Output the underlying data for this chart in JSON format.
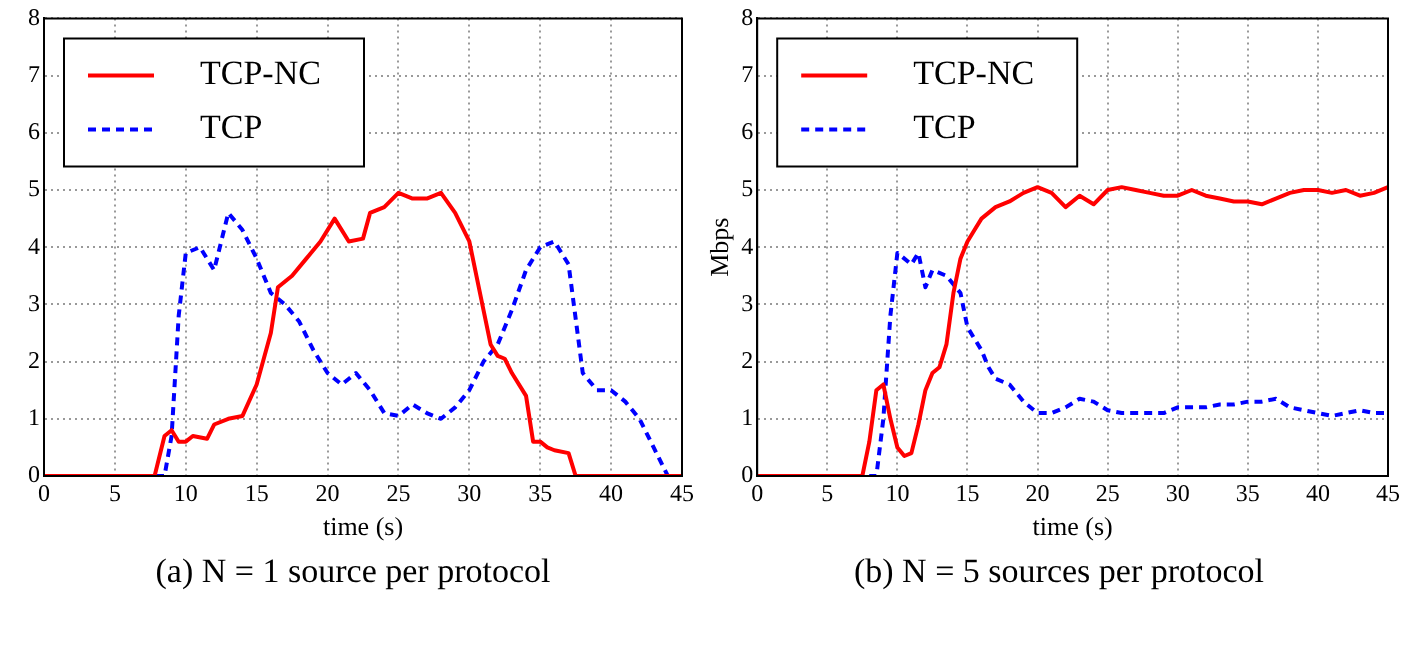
{
  "chart_data": [
    {
      "type": "line",
      "xlabel": "time (s)",
      "xlim": [
        0,
        45
      ],
      "xticks": [
        0,
        5,
        10,
        15,
        20,
        25,
        30,
        35,
        40,
        45
      ],
      "ylim": [
        0,
        8
      ],
      "yticks": [
        0,
        1,
        2,
        3,
        4,
        5,
        6,
        7,
        8
      ],
      "grid": true,
      "legend": "top left",
      "marker": "none",
      "annotations": [
        "(a) N = 1 source per protocol"
      ],
      "series": [
        {
          "name": "TCP-NC",
          "color": "#ff0000",
          "line_style": "solid",
          "x": [
            0,
            7.8,
            8.5,
            9,
            9.5,
            10,
            10.5,
            11.5,
            12,
            13,
            14,
            15,
            16,
            16.5,
            17.5,
            18.5,
            19.5,
            20.5,
            21.5,
            22.5,
            23,
            24,
            25,
            26,
            27,
            28,
            29,
            30,
            31,
            31.5,
            32,
            32.5,
            33,
            34,
            34.5,
            35,
            35.5,
            36,
            37,
            37.5,
            45
          ],
          "values": [
            0,
            0,
            0.7,
            0.8,
            0.6,
            0.6,
            0.7,
            0.65,
            0.9,
            1.0,
            1.05,
            1.6,
            2.5,
            3.3,
            3.5,
            3.8,
            4.1,
            4.5,
            4.1,
            4.15,
            4.6,
            4.7,
            4.95,
            4.85,
            4.85,
            4.95,
            4.6,
            4.1,
            2.9,
            2.3,
            2.1,
            2.05,
            1.8,
            1.4,
            0.6,
            0.6,
            0.5,
            0.45,
            0.4,
            0,
            0
          ]
        },
        {
          "name": "TCP",
          "color": "#0000ff",
          "line_style": "dashed",
          "x": [
            0,
            8.5,
            9,
            9.5,
            10,
            11,
            12,
            13,
            14,
            15,
            16,
            17,
            18,
            19,
            20,
            21,
            22,
            23,
            24,
            25,
            26,
            27,
            28,
            29,
            30,
            31,
            32,
            33,
            34,
            35,
            36,
            37,
            38,
            39,
            40,
            41,
            42,
            43,
            44,
            45
          ],
          "values": [
            0,
            0,
            0.7,
            2.8,
            3.9,
            4.0,
            3.6,
            4.6,
            4.3,
            3.8,
            3.2,
            3.0,
            2.7,
            2.2,
            1.8,
            1.6,
            1.8,
            1.5,
            1.1,
            1.05,
            1.25,
            1.1,
            1.0,
            1.2,
            1.5,
            2.0,
            2.3,
            2.9,
            3.6,
            4.0,
            4.1,
            3.7,
            1.8,
            1.5,
            1.5,
            1.3,
            1.0,
            0.5,
            0,
            0
          ]
        }
      ]
    },
    {
      "type": "line",
      "xlabel": "time (s)",
      "ylabel": "Mbps",
      "xlim": [
        0,
        45
      ],
      "xticks": [
        0,
        5,
        10,
        15,
        20,
        25,
        30,
        35,
        40,
        45
      ],
      "ylim": [
        0,
        8
      ],
      "yticks": [
        0,
        1,
        2,
        3,
        4,
        5,
        6,
        7,
        8
      ],
      "grid": true,
      "legend": "top left",
      "marker": "none",
      "annotations": [
        "(b) N = 5 sources per protocol"
      ],
      "series": [
        {
          "name": "TCP-NC",
          "color": "#ff0000",
          "line_style": "solid",
          "x": [
            0,
            7.5,
            8,
            8.5,
            9,
            9.5,
            10,
            10.5,
            11,
            11.5,
            12,
            12.5,
            13,
            13.5,
            14,
            14.5,
            15,
            15.5,
            16,
            17,
            18,
            19,
            20,
            21,
            22,
            23,
            24,
            25,
            26,
            27,
            28,
            29,
            30,
            31,
            32,
            33,
            34,
            35,
            36,
            37,
            38,
            39,
            40,
            41,
            42,
            43,
            44,
            45
          ],
          "values": [
            0,
            0,
            0.6,
            1.5,
            1.6,
            1.0,
            0.5,
            0.35,
            0.4,
            0.9,
            1.5,
            1.8,
            1.9,
            2.3,
            3.2,
            3.8,
            4.1,
            4.3,
            4.5,
            4.7,
            4.8,
            4.95,
            5.05,
            4.95,
            4.7,
            4.9,
            4.75,
            5.0,
            5.05,
            5.0,
            4.95,
            4.9,
            4.9,
            5.0,
            4.9,
            4.85,
            4.8,
            4.8,
            4.75,
            4.85,
            4.95,
            5.0,
            5.0,
            4.95,
            5.0,
            4.9,
            4.95,
            5.05
          ]
        },
        {
          "name": "TCP",
          "color": "#0000ff",
          "line_style": "dashed",
          "x": [
            0,
            8.5,
            9,
            9.5,
            10,
            11,
            11.5,
            12,
            12.5,
            13.5,
            14.5,
            15,
            16,
            16.5,
            17,
            18,
            19,
            20,
            21,
            22,
            23,
            24,
            25,
            26,
            27,
            28,
            29,
            30,
            31,
            32,
            33,
            34,
            35,
            36,
            37,
            38,
            39,
            40,
            41,
            42,
            43,
            44,
            45
          ],
          "values": [
            0,
            0,
            1.0,
            2.8,
            3.9,
            3.7,
            3.9,
            3.3,
            3.6,
            3.5,
            3.2,
            2.6,
            2.2,
            1.9,
            1.7,
            1.6,
            1.3,
            1.1,
            1.1,
            1.2,
            1.35,
            1.3,
            1.15,
            1.1,
            1.1,
            1.1,
            1.1,
            1.2,
            1.2,
            1.2,
            1.25,
            1.25,
            1.3,
            1.3,
            1.35,
            1.2,
            1.15,
            1.1,
            1.05,
            1.1,
            1.15,
            1.1,
            1.1
          ]
        }
      ]
    }
  ]
}
